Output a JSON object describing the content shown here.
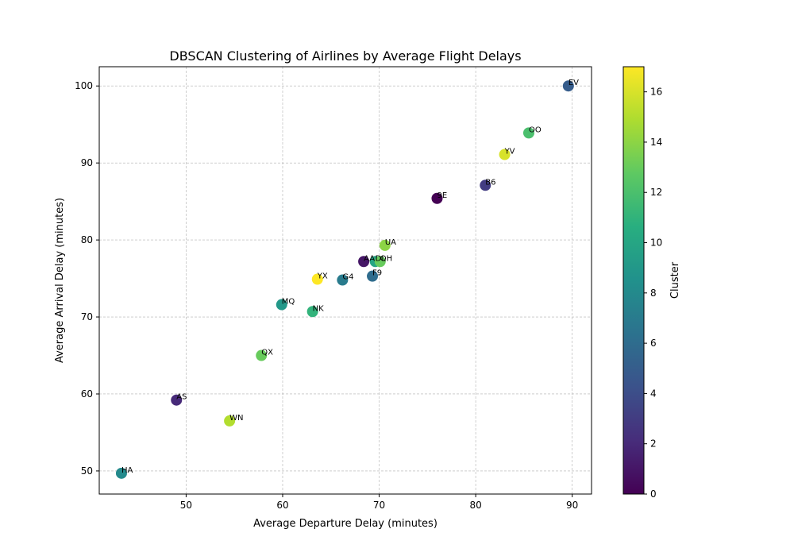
{
  "chart_data": {
    "type": "scatter",
    "title": "DBSCAN Clustering of Airlines by Average Flight Delays",
    "xlabel": "Average Departure Delay (minutes)",
    "ylabel": "Average Arrival Delay (minutes)",
    "xlim": [
      41,
      92
    ],
    "ylim": [
      47,
      102.5
    ],
    "x_ticks": [
      "50",
      "60",
      "70",
      "80",
      "90"
    ],
    "x_tick_values": [
      50,
      60,
      70,
      80,
      90
    ],
    "y_ticks": [
      "50",
      "60",
      "70",
      "80",
      "90",
      "100"
    ],
    "y_tick_values": [
      50,
      60,
      70,
      80,
      90,
      100
    ],
    "grid": true,
    "colorbar": {
      "label": "Cluster",
      "colormap": "viridis",
      "range": [
        0,
        17
      ],
      "ticks": [
        "0",
        "2",
        "4",
        "6",
        "8",
        "10",
        "12",
        "14",
        "16"
      ],
      "tick_values": [
        0,
        2,
        4,
        6,
        8,
        10,
        12,
        14,
        16
      ]
    },
    "points": [
      {
        "label": "EV",
        "x": 89.6,
        "y": 100.0,
        "cluster": 5
      },
      {
        "label": "OO",
        "x": 85.5,
        "y": 93.9,
        "cluster": 12
      },
      {
        "label": "YV",
        "x": 83.0,
        "y": 91.1,
        "cluster": 16
      },
      {
        "label": "B6",
        "x": 81.0,
        "y": 87.1,
        "cluster": 3
      },
      {
        "label": "9E",
        "x": 76.0,
        "y": 85.4,
        "cluster": 0
      },
      {
        "label": "UA",
        "x": 70.6,
        "y": 79.3,
        "cluster": 14
      },
      {
        "label": "AA",
        "x": 68.4,
        "y": 77.2,
        "cluster": 1
      },
      {
        "label": "DL",
        "x": 69.6,
        "y": 77.2,
        "cluster": 10
      },
      {
        "label": "OH",
        "x": 70.1,
        "y": 77.2,
        "cluster": 13
      },
      {
        "label": "F9",
        "x": 69.3,
        "y": 75.3,
        "cluster": 6
      },
      {
        "label": "YX",
        "x": 63.6,
        "y": 74.9,
        "cluster": 17
      },
      {
        "label": "G4",
        "x": 66.2,
        "y": 74.8,
        "cluster": 7
      },
      {
        "label": "MQ",
        "x": 59.9,
        "y": 71.6,
        "cluster": 9
      },
      {
        "label": "NK",
        "x": 63.1,
        "y": 70.7,
        "cluster": 11
      },
      {
        "label": "QX",
        "x": 57.8,
        "y": 65.0,
        "cluster": 13
      },
      {
        "label": "AS",
        "x": 49.0,
        "y": 59.2,
        "cluster": 2
      },
      {
        "label": "WN",
        "x": 54.5,
        "y": 56.5,
        "cluster": 15
      },
      {
        "label": "HA",
        "x": 43.3,
        "y": 49.7,
        "cluster": 8
      }
    ]
  }
}
